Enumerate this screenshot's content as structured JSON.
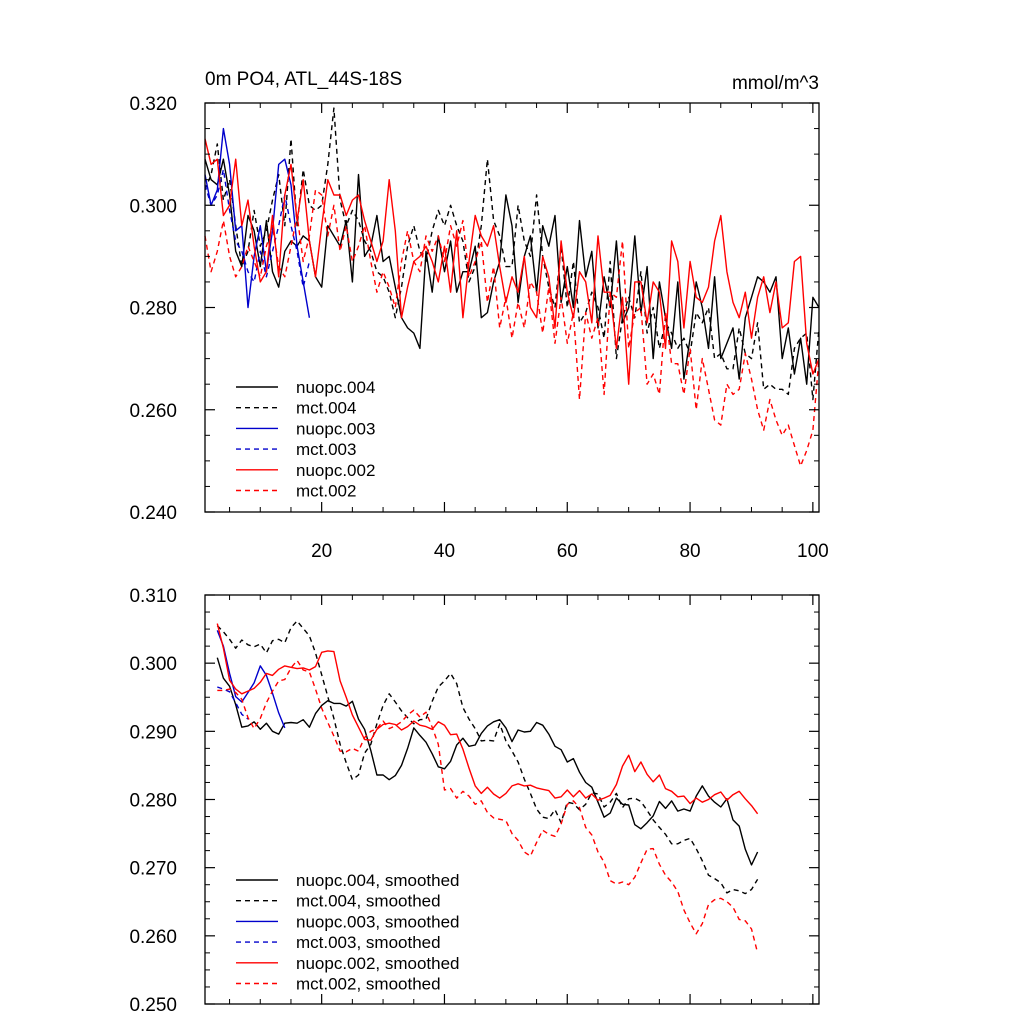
{
  "chart_data": [
    {
      "type": "line",
      "title_left": "0m PO4, ATL_44S-18S",
      "title_right": "mmol/m^3",
      "xlim": [
        1,
        101
      ],
      "ylim": [
        0.24,
        0.32
      ],
      "yticks": [
        "0.240",
        "0.260",
        "0.280",
        "0.300",
        "0.320"
      ],
      "xticks": [
        "20",
        "40",
        "60",
        "80",
        "100"
      ],
      "legend_position": "bottom-left",
      "series": [
        {
          "name": "nuopc.004",
          "color": "#000000",
          "dash": "solid",
          "x_start": 1,
          "values": [
            0.309,
            0.305,
            0.304,
            0.309,
            0.302,
            0.291,
            0.288,
            0.298,
            0.295,
            0.288,
            0.297,
            0.287,
            0.284,
            0.291,
            0.293,
            0.292,
            0.294,
            0.293,
            0.286,
            0.284,
            0.296,
            0.294,
            0.292,
            0.297,
            0.285,
            0.306,
            0.29,
            0.292,
            0.298,
            0.289,
            0.29,
            0.284,
            0.278,
            0.276,
            0.275,
            0.272,
            0.291,
            0.283,
            0.294,
            0.287,
            0.293,
            0.283,
            0.287,
            0.287,
            0.292,
            0.278,
            0.279,
            0.285,
            0.289,
            0.302,
            0.296,
            0.281,
            0.29,
            0.294,
            0.283,
            0.296,
            0.292,
            0.298,
            0.281,
            0.288,
            0.28,
            0.297,
            0.286,
            0.291,
            0.276,
            0.286,
            0.28,
            0.293,
            0.277,
            0.28,
            0.294,
            0.279,
            0.288,
            0.27,
            0.285,
            0.278,
            0.272,
            0.285,
            0.266,
            0.274,
            0.285,
            0.28,
            0.272,
            0.286,
            0.27,
            0.273,
            0.276,
            0.266,
            0.278,
            0.282,
            0.286,
            0.285,
            0.283,
            0.286,
            0.27,
            0.276,
            0.267,
            0.274,
            0.265,
            0.282,
            0.28
          ]
        },
        {
          "name": "mct.004",
          "color": "#000000",
          "dash": "dash",
          "x_start": 1,
          "values": [
            0.303,
            0.306,
            0.312,
            0.301,
            0.305,
            0.296,
            0.288,
            0.291,
            0.299,
            0.292,
            0.295,
            0.301,
            0.306,
            0.296,
            0.313,
            0.296,
            0.307,
            0.3,
            0.299,
            0.3,
            0.308,
            0.319,
            0.301,
            0.296,
            0.299,
            0.297,
            0.293,
            0.291,
            0.287,
            0.286,
            0.283,
            0.278,
            0.284,
            0.292,
            0.296,
            0.291,
            0.289,
            0.295,
            0.299,
            0.296,
            0.3,
            0.296,
            0.293,
            0.285,
            0.288,
            0.296,
            0.309,
            0.297,
            0.294,
            0.288,
            0.288,
            0.3,
            0.293,
            0.29,
            0.302,
            0.29,
            0.284,
            0.28,
            0.292,
            0.28,
            0.289,
            0.277,
            0.279,
            0.283,
            0.28,
            0.274,
            0.289,
            0.27,
            0.278,
            0.282,
            0.278,
            0.287,
            0.275,
            0.28,
            0.272,
            0.277,
            0.275,
            0.272,
            0.274,
            0.271,
            0.279,
            0.277,
            0.28,
            0.27,
            0.271,
            0.268,
            0.268,
            0.276,
            0.271,
            0.27,
            0.277,
            0.264,
            0.265,
            0.264,
            0.264,
            0.263,
            0.272,
            0.274,
            0.275,
            0.262,
            0.276
          ]
        },
        {
          "name": "nuopc.003",
          "color": "#0000cc",
          "dash": "solid",
          "x_start": 1,
          "values": [
            0.306,
            0.3,
            0.303,
            0.315,
            0.308,
            0.295,
            0.296,
            0.28,
            0.29,
            0.296,
            0.287,
            0.295,
            0.308,
            0.309,
            0.304,
            0.292,
            0.285,
            0.278
          ]
        },
        {
          "name": "mct.003",
          "color": "#0000cc",
          "dash": "dash",
          "x_start": 1,
          "values": [
            0.304,
            0.3,
            0.302,
            0.307,
            0.299,
            0.293,
            0.291,
            0.287,
            0.285,
            0.291,
            0.286,
            0.291,
            0.296,
            0.302,
            0.296,
            0.291,
            0.284,
            0.289
          ]
        },
        {
          "name": "nuopc.002",
          "color": "#ff0000",
          "dash": "solid",
          "x_start": 1,
          "values": [
            0.313,
            0.308,
            0.309,
            0.298,
            0.3,
            0.309,
            0.296,
            0.301,
            0.292,
            0.285,
            0.287,
            0.298,
            0.286,
            0.302,
            0.308,
            0.297,
            0.305,
            0.293,
            0.286,
            0.296,
            0.305,
            0.302,
            0.302,
            0.298,
            0.301,
            0.302,
            0.297,
            0.293,
            0.289,
            0.293,
            0.305,
            0.295,
            0.278,
            0.284,
            0.289,
            0.29,
            0.292,
            0.289,
            0.285,
            0.292,
            0.283,
            0.295,
            0.278,
            0.289,
            0.298,
            0.294,
            0.292,
            0.296,
            0.288,
            0.281,
            0.286,
            0.283,
            0.29,
            0.28,
            0.278,
            0.29,
            0.286,
            0.276,
            0.293,
            0.283,
            0.278,
            0.287,
            0.285,
            0.277,
            0.294,
            0.283,
            0.283,
            0.272,
            0.282,
            0.265,
            0.285,
            0.285,
            0.277,
            0.285,
            0.283,
            0.272,
            0.293,
            0.289,
            0.276,
            0.289,
            0.282,
            0.281,
            0.284,
            0.293,
            0.298,
            0.287,
            0.281,
            0.278,
            0.283,
            0.274,
            0.282,
            0.286,
            0.279,
            0.285,
            0.276,
            0.277,
            0.289,
            0.29,
            0.273,
            0.267,
            0.27
          ]
        },
        {
          "name": "mct.002",
          "color": "#ff0000",
          "dash": "dash",
          "x_start": 1,
          "values": [
            0.294,
            0.287,
            0.291,
            0.297,
            0.29,
            0.286,
            0.288,
            0.292,
            0.289,
            0.286,
            0.292,
            0.296,
            0.288,
            0.286,
            0.292,
            0.298,
            0.289,
            0.294,
            0.303,
            0.302,
            0.294,
            0.3,
            0.291,
            0.296,
            0.289,
            0.292,
            0.296,
            0.289,
            0.283,
            0.287,
            0.284,
            0.28,
            0.289,
            0.295,
            0.289,
            0.287,
            0.294,
            0.291,
            0.294,
            0.289,
            0.296,
            0.292,
            0.297,
            0.286,
            0.289,
            0.293,
            0.281,
            0.288,
            0.276,
            0.282,
            0.274,
            0.281,
            0.276,
            0.285,
            0.283,
            0.275,
            0.284,
            0.273,
            0.282,
            0.273,
            0.279,
            0.262,
            0.279,
            0.274,
            0.278,
            0.263,
            0.283,
            0.282,
            0.293,
            0.272,
            0.279,
            0.28,
            0.265,
            0.267,
            0.263,
            0.279,
            0.269,
            0.269,
            0.263,
            0.272,
            0.26,
            0.27,
            0.264,
            0.258,
            0.257,
            0.265,
            0.263,
            0.264,
            0.271,
            0.266,
            0.26,
            0.256,
            0.262,
            0.258,
            0.255,
            0.257,
            0.253,
            0.249,
            0.252,
            0.256,
            0.27
          ]
        }
      ]
    },
    {
      "type": "line",
      "xlim": [
        1,
        101
      ],
      "ylim": [
        0.25,
        0.31
      ],
      "yticks": [
        "0.250",
        "0.260",
        "0.270",
        "0.280",
        "0.290",
        "0.300",
        "0.310"
      ],
      "legend_position": "bottom-left",
      "series": [
        {
          "name": "nuopc.004, smoothed",
          "color": "#000000",
          "dash": "solid",
          "x_start": 3,
          "values": [
            0.3008,
            0.2978,
            0.2966,
            0.2939,
            0.2906,
            0.2908,
            0.2914,
            0.2903,
            0.2912,
            0.29,
            0.2896,
            0.2912,
            0.2913,
            0.2912,
            0.2917,
            0.2906,
            0.2926,
            0.2938,
            0.2945,
            0.2941,
            0.2941,
            0.2937,
            0.2944,
            0.2918,
            0.2903,
            0.2872,
            0.2836,
            0.2836,
            0.2829,
            0.2835,
            0.285,
            0.2875,
            0.2905,
            0.2894,
            0.2884,
            0.2867,
            0.2848,
            0.2845,
            0.2856,
            0.288,
            0.289,
            0.2878,
            0.288,
            0.2897,
            0.2908,
            0.2914,
            0.2917,
            0.2905,
            0.2885,
            0.2902,
            0.2899,
            0.29,
            0.2913,
            0.2909,
            0.2896,
            0.2878,
            0.2873,
            0.2855,
            0.286,
            0.284,
            0.2825,
            0.2818,
            0.2796,
            0.2774,
            0.278,
            0.2802,
            0.2793,
            0.2792,
            0.2763,
            0.2757,
            0.2766,
            0.2776,
            0.2797,
            0.2787,
            0.2798,
            0.2783,
            0.2786,
            0.2783,
            0.2805,
            0.282,
            0.2805,
            0.2796,
            0.2789,
            0.2801,
            0.277,
            0.2761,
            0.2727,
            0.2704,
            0.2723
          ]
        },
        {
          "name": "mct.004, smoothed",
          "color": "#000000",
          "dash": "dash",
          "x_start": 3,
          "values": [
            0.3055,
            0.3046,
            0.3035,
            0.3022,
            0.3034,
            0.3027,
            0.3024,
            0.3028,
            0.3015,
            0.3033,
            0.3035,
            0.303,
            0.3052,
            0.3062,
            0.3051,
            0.304,
            0.3015,
            0.2983,
            0.2951,
            0.2919,
            0.2881,
            0.2854,
            0.2829,
            0.2836,
            0.2868,
            0.2881,
            0.2911,
            0.2938,
            0.2955,
            0.2943,
            0.293,
            0.292,
            0.2911,
            0.2917,
            0.2918,
            0.2944,
            0.2965,
            0.2974,
            0.2985,
            0.297,
            0.2935,
            0.2918,
            0.2904,
            0.2886,
            0.2887,
            0.2886,
            0.2911,
            0.2886,
            0.2871,
            0.2855,
            0.283,
            0.2809,
            0.2786,
            0.2774,
            0.2772,
            0.2785,
            0.2766,
            0.2796,
            0.2794,
            0.2785,
            0.2793,
            0.281,
            0.2808,
            0.2789,
            0.2796,
            0.2809,
            0.2788,
            0.2801,
            0.2802,
            0.2797,
            0.2784,
            0.277,
            0.2759,
            0.2749,
            0.2735,
            0.2735,
            0.274,
            0.2743,
            0.2728,
            0.271,
            0.2689,
            0.2684,
            0.2678,
            0.2663,
            0.2668,
            0.2666,
            0.2662,
            0.2668,
            0.2683
          ]
        },
        {
          "name": "nuopc.003, smoothed",
          "color": "#0000cc",
          "dash": "solid",
          "x_start": 3,
          "values": [
            0.3048,
            0.3025,
            0.2985,
            0.2951,
            0.2943,
            0.2957,
            0.2971,
            0.2996,
            0.2982,
            0.2956,
            0.2927,
            0.2905
          ]
        },
        {
          "name": "mct.003, smoothed",
          "color": "#0000cc",
          "dash": "dash",
          "x_start": 3,
          "values": [
            0.2965,
            0.2962,
            0.2958,
            0.2942,
            0.2925,
            0.2918
          ]
        },
        {
          "name": "nuopc.002, smoothed",
          "color": "#ff0000",
          "dash": "solid",
          "x_start": 3,
          "values": [
            0.3058,
            0.3022,
            0.2975,
            0.2962,
            0.2955,
            0.2959,
            0.2963,
            0.2972,
            0.2985,
            0.2982,
            0.2991,
            0.2996,
            0.2994,
            0.2992,
            0.2993,
            0.299,
            0.2995,
            0.3016,
            0.3018,
            0.3017,
            0.2974,
            0.295,
            0.2924,
            0.2906,
            0.2888,
            0.2887,
            0.2903,
            0.291,
            0.2912,
            0.291,
            0.2902,
            0.2907,
            0.2915,
            0.2909,
            0.2907,
            0.2903,
            0.2914,
            0.2909,
            0.2895,
            0.2896,
            0.2874,
            0.2846,
            0.282,
            0.2809,
            0.2818,
            0.2808,
            0.2802,
            0.2809,
            0.282,
            0.2823,
            0.282,
            0.2821,
            0.2817,
            0.2815,
            0.2813,
            0.2802,
            0.2804,
            0.2814,
            0.2804,
            0.2813,
            0.2802,
            0.2808,
            0.2799,
            0.2802,
            0.2806,
            0.2822,
            0.2849,
            0.2865,
            0.2841,
            0.2855,
            0.2837,
            0.2826,
            0.2836,
            0.2816,
            0.2812,
            0.2804,
            0.2805,
            0.2794,
            0.2802,
            0.2796,
            0.28,
            0.2807,
            0.2811,
            0.2799,
            0.2807,
            0.2812,
            0.2801,
            0.2791,
            0.2779
          ]
        },
        {
          "name": "mct.002, smoothed",
          "color": "#ff0000",
          "dash": "dash",
          "x_start": 3,
          "values": [
            0.296,
            0.296,
            0.2962,
            0.2957,
            0.2947,
            0.292,
            0.2904,
            0.2919,
            0.2942,
            0.2959,
            0.2974,
            0.2976,
            0.2993,
            0.3004,
            0.299,
            0.2987,
            0.2962,
            0.2934,
            0.2913,
            0.2893,
            0.2871,
            0.287,
            0.2875,
            0.2871,
            0.2891,
            0.29,
            0.2904,
            0.2915,
            0.2904,
            0.2908,
            0.2914,
            0.2924,
            0.2931,
            0.2921,
            0.2928,
            0.2906,
            0.2881,
            0.2814,
            0.2816,
            0.2802,
            0.2812,
            0.2805,
            0.2793,
            0.2798,
            0.2781,
            0.2773,
            0.2771,
            0.2769,
            0.275,
            0.274,
            0.2723,
            0.2717,
            0.2737,
            0.2755,
            0.2749,
            0.2746,
            0.2764,
            0.2793,
            0.2798,
            0.2788,
            0.2759,
            0.2748,
            0.2723,
            0.2708,
            0.2681,
            0.2676,
            0.2679,
            0.2675,
            0.2686,
            0.2707,
            0.2727,
            0.2728,
            0.2705,
            0.2689,
            0.2679,
            0.2665,
            0.2638,
            0.2619,
            0.2603,
            0.2618,
            0.2646,
            0.2653,
            0.2655,
            0.265,
            0.2642,
            0.2624,
            0.2622,
            0.261,
            0.2575
          ]
        }
      ]
    }
  ]
}
